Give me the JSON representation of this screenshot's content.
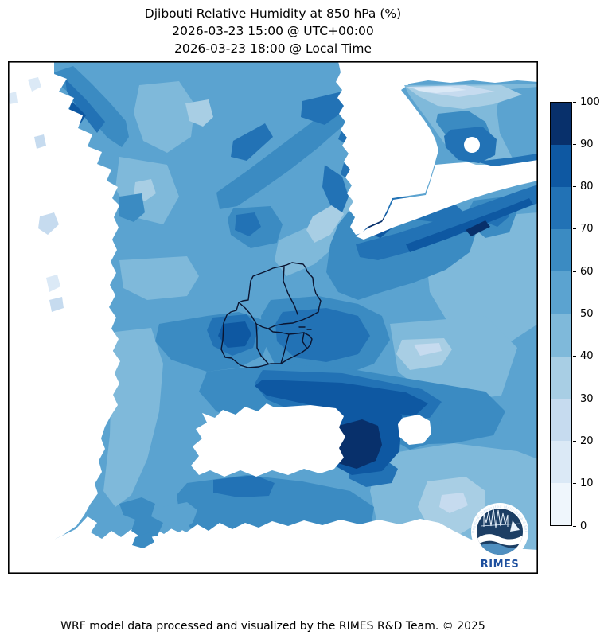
{
  "title": {
    "line1": "Djibouti Relative Humidity at 850 hPa (%)",
    "line2": "2026-03-23 15:00 @ UTC+00:00",
    "line3": "2026-03-23 18:00 @ Local Time"
  },
  "footer": {
    "credit": "WRF model data processed and visualized by the RIMES R&D Team. © 2025"
  },
  "colorbar": {
    "min": 0,
    "max": 100,
    "ticks": [
      0,
      10,
      20,
      30,
      40,
      50,
      60,
      70,
      80,
      90,
      100
    ],
    "colors": [
      "#eff6fc",
      "#dbe9f6",
      "#c6dbef",
      "#a8cee4",
      "#7fb9da",
      "#5ba3d0",
      "#3b8bc2",
      "#2272b5",
      "#0e58a2",
      "#08306b"
    ],
    "under_color": "#ffffff"
  },
  "map": {
    "region": "Djibouti",
    "boundary_color": "#0a1430",
    "frame_color": "#000000"
  },
  "logo": {
    "label": "RIMES",
    "ring_text": "Regional Integrated Multi-Hazard Early Warning System",
    "navy": "#1c3e64",
    "wave_accent": "#4f8fc0",
    "ring_color": "#c9ddf0",
    "text_color": "#1d4f9e"
  },
  "chart_data": {
    "type": "heatmap",
    "title": "Djibouti Relative Humidity at 850 hPa (%)",
    "valid_time_utc": "2026-03-23 15:00 @ UTC+00:00",
    "valid_time_local": "2026-03-23 18:00 @ Local Time",
    "variable": "Relative Humidity",
    "pressure_level": "850 hPa",
    "units": "%",
    "levels": [
      0,
      10,
      20,
      30,
      40,
      50,
      60,
      70,
      80,
      90,
      100
    ],
    "colormap": "Blues",
    "colors": [
      "#eff6fc",
      "#dbe9f6",
      "#c6dbef",
      "#a8cee4",
      "#7fb9da",
      "#5ba3d0",
      "#3b8bc2",
      "#2272b5",
      "#0e58a2",
      "#08306b"
    ],
    "legend_position": "right",
    "overlay": "Djibouti national and regional administrative boundaries",
    "masked_areas": "white = no data / below lowest contour (west, northeast wedge, south strip, patch south-centre)",
    "notable_features": [
      {
        "value_range": "90-100",
        "location": "south-central area south of Djibouti border"
      },
      {
        "value_range": "80-90",
        "location": "band beneath northeast no-data wedge and around south-central maximum"
      },
      {
        "value_range": "30-50",
        "location": "upper-right corner gradient and lower-right lobe"
      }
    ]
  }
}
